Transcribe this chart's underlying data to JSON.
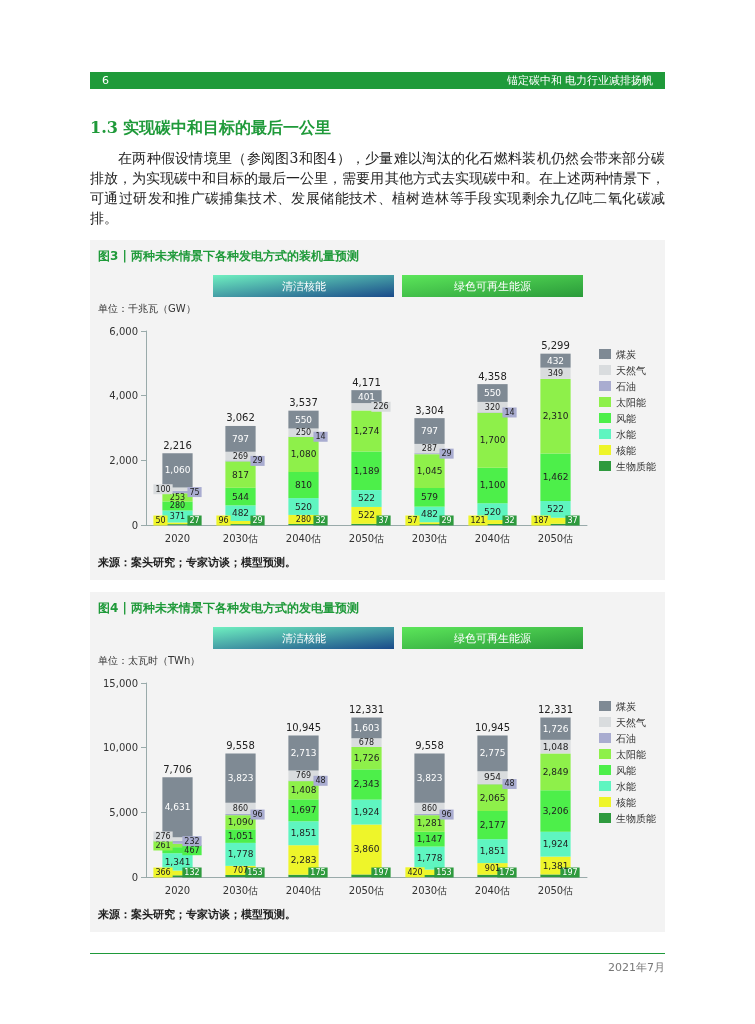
{
  "chart_data": [
    {
      "type": "bar",
      "stacked": true,
      "legend": "right",
      "title": "图3 | 两种未来情景下各种发电方式的装机量预测",
      "ylabel": "单位：千兆瓦（GW）",
      "annotations": [
        "清洁核能",
        "绿色可再生能源",
        "来源：案头研究；专家访谈；模型预测。",
        "6",
        "锚定碳中和 电力行业减排扬帆",
        "1.3 实现碳中和目标的最后一公里",
        "在两种假设情境里（参阅图3和图4），少量难以淘汰的化石燃料装机仍然会带来部分碳排放，为实现碳中和目标的最后一公里，需要用其他方式去实现碳中和。在上述两种情景下，可通过研发和推广碳捕集技术、发展储能技术、植树造林等手段实现剩余九亿吨二氧化碳减排。"
      ],
      "categories": [
        "2020",
        "2030估",
        "2040估",
        "2050估",
        "2030估",
        "2040估",
        "2050估"
      ],
      "ylim": [
        0,
        6000
      ],
      "yticks": [
        {
          "value": 0,
          "label": "0"
        },
        {
          "value": 2000,
          "label": "2,000"
        },
        {
          "value": 4000,
          "label": "4,000"
        },
        {
          "value": 6000,
          "label": "6,000"
        }
      ],
      "totals": [
        "2,216",
        "3,062",
        "3,537",
        "4,171",
        "3,304",
        "4,358",
        "5,299"
      ],
      "series": [
        {
          "name": "生物质能",
          "color": "#2e9a3e",
          "values": [
            27,
            29,
            32,
            37,
            29,
            32,
            37
          ],
          "value_labels": [
            "27",
            "29",
            "32",
            "37",
            "29",
            "32",
            "37"
          ]
        },
        {
          "name": "核能",
          "color": "#eef52a",
          "values": [
            50,
            96,
            280,
            522,
            57,
            121,
            187
          ],
          "value_labels": [
            "50",
            "96",
            "280",
            "522",
            "57",
            "121",
            "187"
          ]
        },
        {
          "name": "水能",
          "color": "#5ff5c0",
          "values": [
            371,
            482,
            520,
            522,
            482,
            520,
            522
          ],
          "value_labels": [
            "371",
            "482",
            "520",
            "522",
            "482",
            "520",
            "522"
          ]
        },
        {
          "name": "风能",
          "color": "#4def4a",
          "values": [
            280,
            544,
            810,
            1189,
            579,
            1100,
            1462
          ],
          "value_labels": [
            "280",
            "544",
            "810",
            "1,189",
            "579",
            "1,100",
            "1,462"
          ]
        },
        {
          "name": "太阳能",
          "color": "#8ef04a",
          "values": [
            253,
            817,
            1080,
            1274,
            1045,
            1700,
            2310
          ],
          "value_labels": [
            "253",
            "817",
            "1,080",
            "1,274",
            "1,045",
            "1,700",
            "2,310"
          ]
        },
        {
          "name": "石油",
          "color": "#a9acd0",
          "values": [
            75,
            29,
            14,
            null,
            29,
            14,
            null
          ],
          "value_labels": [
            "75",
            "29",
            "14",
            null,
            "29",
            "14",
            null
          ]
        },
        {
          "name": "天然气",
          "color": "#d9dcde",
          "values": [
            100,
            269,
            250,
            226,
            287,
            320,
            349
          ],
          "value_labels": [
            "100",
            "269",
            "250",
            "226",
            "287",
            "320",
            "349"
          ]
        },
        {
          "name": "煤炭",
          "color": "#7f8a94",
          "values": [
            1060,
            797,
            550,
            401,
            797,
            550,
            432
          ],
          "value_labels": [
            "1,060",
            "797",
            "550",
            "401",
            "797",
            "550",
            "432"
          ]
        }
      ]
    },
    {
      "type": "bar",
      "stacked": true,
      "legend": "right",
      "title": "图4 | 两种未来情景下各种发电方式的发电量预测",
      "ylabel": "单位：太瓦时（TWh）",
      "annotations": [
        "清洁核能",
        "绿色可再生能源",
        "来源：案头研究；专家访谈；模型预测。",
        "2021年7月"
      ],
      "categories": [
        "2020",
        "2030估",
        "2040估",
        "2050估",
        "2030估",
        "2040估",
        "2050估"
      ],
      "ylim": [
        0,
        15000
      ],
      "yticks": [
        {
          "value": 0,
          "label": "0"
        },
        {
          "value": 5000,
          "label": "5,000"
        },
        {
          "value": 10000,
          "label": "10,000"
        },
        {
          "value": 15000,
          "label": "15,000"
        }
      ],
      "totals": [
        "7,706",
        "9,558",
        "10,945",
        "12,331",
        "9,558",
        "10,945",
        "12,331"
      ],
      "series": [
        {
          "name": "生物质能",
          "color": "#2e9a3e",
          "values": [
            132,
            153,
            175,
            197,
            153,
            175,
            197
          ],
          "value_labels": [
            "132",
            "153",
            "175",
            "197",
            "153",
            "175",
            "197"
          ]
        },
        {
          "name": "核能",
          "color": "#eef52a",
          "values": [
            366,
            707,
            2283,
            3860,
            420,
            901,
            1381
          ],
          "value_labels": [
            "366",
            "707",
            "2,283",
            "3,860",
            "420",
            "901",
            "1,381"
          ]
        },
        {
          "name": "水能",
          "color": "#5ff5c0",
          "values": [
            1341,
            1778,
            1851,
            1924,
            1778,
            1851,
            1924
          ],
          "value_labels": [
            "1,341",
            "1,778",
            "1,851",
            "1,924",
            "1,778",
            "1,851",
            "1,924"
          ]
        },
        {
          "name": "风能",
          "color": "#4def4a",
          "values": [
            467,
            1051,
            1697,
            2343,
            1147,
            2177,
            3206
          ],
          "value_labels": [
            "467",
            "1,051",
            "1,697",
            "2,343",
            "1,147",
            "2,177",
            "3,206"
          ]
        },
        {
          "name": "太阳能",
          "color": "#8ef04a",
          "values": [
            261,
            1090,
            1408,
            1726,
            1281,
            2065,
            2849
          ],
          "value_labels": [
            "261",
            "1,090",
            "1,408",
            "1,726",
            "1,281",
            "2,065",
            "2,849"
          ]
        },
        {
          "name": "石油",
          "color": "#a9acd0",
          "values": [
            232,
            96,
            48,
            null,
            96,
            48,
            null
          ],
          "value_labels": [
            "232",
            "96",
            "48",
            null,
            "96",
            "48",
            null
          ]
        },
        {
          "name": "天然气",
          "color": "#d9dcde",
          "values": [
            276,
            860,
            769,
            678,
            860,
            954,
            1048
          ],
          "value_labels": [
            "276",
            "860",
            "769",
            "678",
            "860",
            "954",
            "1,048"
          ]
        },
        {
          "name": "煤炭",
          "color": "#7f8a94",
          "values": [
            4631,
            3823,
            2713,
            1603,
            3823,
            2775,
            1726
          ],
          "value_labels": [
            "4,631",
            "3,823",
            "2,713",
            "1,603",
            "3,823",
            "2,775",
            "1,726"
          ]
        }
      ]
    }
  ]
}
